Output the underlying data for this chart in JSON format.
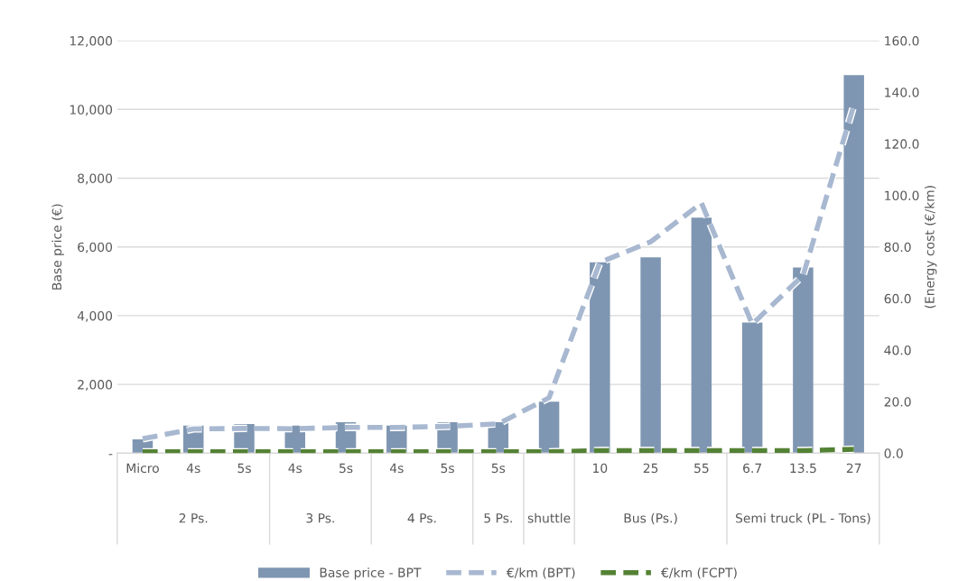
{
  "chart_data": {
    "type": "bar",
    "categories": [
      "Micro",
      "4s",
      "5s",
      "4s",
      "5s",
      "4s",
      "5s",
      "5s",
      null,
      "10",
      "25",
      "55",
      "6.7",
      "13.5",
      "27"
    ],
    "annotations": [
      "2 Ps.",
      "3 Ps.",
      "4 Ps.",
      "5 Ps.",
      "shuttle",
      "Bus (Ps.)",
      "Semi truck (PL - Tons)"
    ],
    "ylabel": "Base price (€)",
    "y2label": "(Energy cost (€/km)",
    "ylim": [
      0,
      12000
    ],
    "yticks": [
      {
        "value": 0,
        "label": "-"
      },
      {
        "value": 2000,
        "label": "2,000"
      },
      {
        "value": 4000,
        "label": "4,000"
      },
      {
        "value": 6000,
        "label": "6,000"
      },
      {
        "value": 8000,
        "label": "8,000"
      },
      {
        "value": 10000,
        "label": "10,000"
      },
      {
        "value": 12000,
        "label": "12,000"
      }
    ],
    "y2lim": [
      0,
      160
    ],
    "y2ticks": [
      {
        "value": 0,
        "label": "0.0"
      },
      {
        "value": 20,
        "label": "20.0"
      },
      {
        "value": 40,
        "label": "40.0"
      },
      {
        "value": 60,
        "label": "60.0"
      },
      {
        "value": 80,
        "label": "80.0"
      },
      {
        "value": 100,
        "label": "100.0"
      },
      {
        "value": 120,
        "label": "120.0"
      },
      {
        "value": 140,
        "label": "140.0"
      },
      {
        "value": 160,
        "label": "160.0"
      }
    ],
    "grid": "y",
    "legend": "bottom",
    "series": [
      {
        "name": "Base price - BPT",
        "color": "#7f96b2",
        "values": [
          400,
          800,
          850,
          800,
          900,
          800,
          900,
          900,
          1500,
          5550,
          5700,
          6850,
          3800,
          5400,
          11000
        ]
      },
      {
        "name": "€/km (BPT)",
        "type": "line",
        "axis": "y2",
        "line_style": "dashed",
        "color": "#a8b8d0",
        "values": [
          5.6,
          9.4,
          9.6,
          9.5,
          10,
          10,
          10.4,
          11.4,
          21.5,
          74,
          82,
          97,
          50,
          69,
          135
        ]
      },
      {
        "name": "€/km (FCPT)",
        "type": "line",
        "axis": "y2",
        "line_style": "dashed",
        "color": "#548235",
        "values": [
          0.5,
          0.5,
          0.5,
          0.5,
          0.5,
          0.5,
          0.5,
          0.5,
          0.5,
          1,
          1,
          1,
          1,
          1,
          1.5
        ]
      }
    ]
  }
}
